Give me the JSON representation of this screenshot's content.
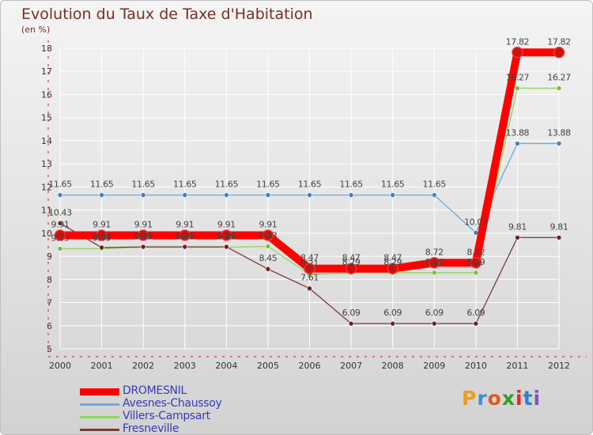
{
  "title": "Evolution du Taux de Taxe d'Habitation",
  "subtitle": "(en %)",
  "brand": {
    "letters": [
      "P",
      "r",
      "o",
      "x",
      "i",
      "t",
      "i"
    ],
    "colors": [
      "#e8a020",
      "#3e8fcf",
      "#e05a1c",
      "#2aa12a",
      "#e22a2a",
      "#2e7fd0",
      "#8a4fc6"
    ]
  },
  "chart_data": {
    "type": "line",
    "title": "Evolution du Taux de Taxe d'Habitation",
    "ylabel": "(en %)",
    "xlabel": "",
    "ylim": [
      5,
      18
    ],
    "yticks": [
      5,
      6,
      7,
      8,
      9,
      10,
      11,
      12,
      13,
      14,
      15,
      16,
      17,
      18
    ],
    "x": [
      "2000",
      "2001",
      "2002",
      "2003",
      "2004",
      "2005",
      "2006",
      "2007",
      "2008",
      "2009",
      "2010",
      "2011",
      "2012"
    ],
    "series": [
      {
        "name": "DROMESNIL",
        "color": "#ff0000",
        "marker": "#c81212",
        "values": [
          9.91,
          9.91,
          9.91,
          9.91,
          9.91,
          9.91,
          8.47,
          8.47,
          8.47,
          8.72,
          8.72,
          17.82,
          17.82
        ],
        "labels": [
          "9.91",
          "9.91",
          "9.91",
          "9.91",
          "9.91",
          "9.91",
          "8.47",
          "8.47",
          "8.47",
          "8.72",
          "8.72",
          "17.82",
          "17.82"
        ]
      },
      {
        "name": "Avesnes-Chaussoy",
        "color": "#6fa8dc",
        "marker": "#3b84c4",
        "values": [
          11.65,
          11.65,
          11.65,
          11.65,
          11.65,
          11.65,
          11.65,
          11.65,
          11.65,
          11.65,
          10.02,
          13.88,
          13.88
        ],
        "labels": [
          "11.65",
          "11.65",
          "11.65",
          "11.65",
          "11.65",
          "11.65",
          "11.65",
          "11.65",
          "11.65",
          "11.65",
          "10.02",
          "13.88",
          "13.88"
        ]
      },
      {
        "name": "Villers-Campsart",
        "color": "#8fd65a",
        "marker": "#6cc63a",
        "values": [
          9.33,
          9.33,
          9.39,
          9.39,
          9.39,
          9.43,
          8.21,
          8.29,
          8.29,
          8.29,
          8.29,
          16.27,
          16.27
        ],
        "labels": [
          "9.33",
          "9.33",
          "9.39",
          "9.39",
          "9.39",
          "9.43",
          "8.21",
          "8.29",
          "8.29",
          "8.29",
          "8.29",
          "16.27",
          "16.27"
        ]
      },
      {
        "name": "Fresneville",
        "color": "#7b3a3a",
        "marker": "#6a2020",
        "values": [
          10.43,
          9.38,
          9.41,
          9.41,
          9.41,
          8.45,
          7.61,
          6.09,
          6.09,
          6.09,
          6.09,
          9.81,
          9.81
        ],
        "labels": [
          "10.43",
          "9.38",
          "9.41",
          "9.41",
          "9.41",
          "8.45",
          "7.61",
          "6.09",
          "6.09",
          "6.09",
          "6.09",
          "9.81",
          "9.81"
        ]
      }
    ],
    "legend_position": "bottom-left"
  }
}
